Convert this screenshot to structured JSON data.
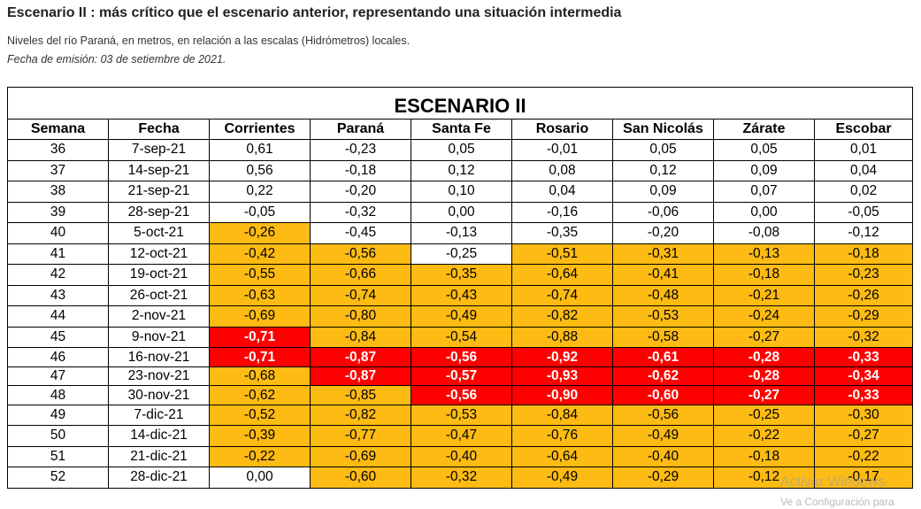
{
  "page": {
    "title": "Escenario II : más crítico que el escenario anterior, representando una situación intermedia",
    "subtitle": "Niveles del río Paraná, en metros, en relación a las escalas (Hidrómetros) locales.",
    "date": "Fecha de emisión: 03 de setiembre de 2021."
  },
  "table": {
    "heading": "ESCENARIO II",
    "columns": [
      "Semana",
      "Fecha",
      "Corrientes",
      "Paraná",
      "Santa Fe",
      "Rosario",
      "San Nicolás",
      "Zárate",
      "Escobar"
    ],
    "colors": {
      "white": "#ffffff",
      "yellow": "#fdbb13",
      "red": "#fe0000"
    },
    "rows": [
      {
        "semana": "36",
        "fecha": "7-sep-21",
        "values": [
          "0,61",
          "-0,23",
          "0,05",
          "-0,01",
          "0,05",
          "0,05",
          "0,01"
        ],
        "levels": [
          "w",
          "w",
          "w",
          "w",
          "w",
          "w",
          "w"
        ]
      },
      {
        "semana": "37",
        "fecha": "14-sep-21",
        "values": [
          "0,56",
          "-0,18",
          "0,12",
          "0,08",
          "0,12",
          "0,09",
          "0,04"
        ],
        "levels": [
          "w",
          "w",
          "w",
          "w",
          "w",
          "w",
          "w"
        ]
      },
      {
        "semana": "38",
        "fecha": "21-sep-21",
        "values": [
          "0,22",
          "-0,20",
          "0,10",
          "0,04",
          "0,09",
          "0,07",
          "0,02"
        ],
        "levels": [
          "w",
          "w",
          "w",
          "w",
          "w",
          "w",
          "w"
        ]
      },
      {
        "semana": "39",
        "fecha": "28-sep-21",
        "values": [
          "-0,05",
          "-0,32",
          "0,00",
          "-0,16",
          "-0,06",
          "0,00",
          "-0,05"
        ],
        "levels": [
          "w",
          "w",
          "w",
          "w",
          "w",
          "w",
          "w"
        ]
      },
      {
        "semana": "40",
        "fecha": "5-oct-21",
        "values": [
          "-0,26",
          "-0,45",
          "-0,13",
          "-0,35",
          "-0,20",
          "-0,08",
          "-0,12"
        ],
        "levels": [
          "y",
          "w",
          "w",
          "w",
          "w",
          "w",
          "w"
        ]
      },
      {
        "semana": "41",
        "fecha": "12-oct-21",
        "values": [
          "-0,42",
          "-0,56",
          "-0,25",
          "-0,51",
          "-0,31",
          "-0,13",
          "-0,18"
        ],
        "levels": [
          "y",
          "y",
          "w",
          "y",
          "y",
          "y",
          "y"
        ]
      },
      {
        "semana": "42",
        "fecha": "19-oct-21",
        "values": [
          "-0,55",
          "-0,66",
          "-0,35",
          "-0,64",
          "-0,41",
          "-0,18",
          "-0,23"
        ],
        "levels": [
          "y",
          "y",
          "y",
          "y",
          "y",
          "y",
          "y"
        ]
      },
      {
        "semana": "43",
        "fecha": "26-oct-21",
        "values": [
          "-0,63",
          "-0,74",
          "-0,43",
          "-0,74",
          "-0,48",
          "-0,21",
          "-0,26"
        ],
        "levels": [
          "y",
          "y",
          "y",
          "y",
          "y",
          "y",
          "y"
        ]
      },
      {
        "semana": "44",
        "fecha": "2-nov-21",
        "values": [
          "-0,69",
          "-0,80",
          "-0,49",
          "-0,82",
          "-0,53",
          "-0,24",
          "-0,29"
        ],
        "levels": [
          "y",
          "y",
          "y",
          "y",
          "y",
          "y",
          "y"
        ]
      },
      {
        "semana": "45",
        "fecha": "9-nov-21",
        "values": [
          "-0,71",
          "-0,84",
          "-0,54",
          "-0,88",
          "-0,58",
          "-0,27",
          "-0,32"
        ],
        "levels": [
          "r",
          "y",
          "y",
          "y",
          "y",
          "y",
          "y"
        ]
      },
      {
        "semana": "46",
        "fecha": "16-nov-21",
        "values": [
          "-0,71",
          "-0,87",
          "-0,56",
          "-0,92",
          "-0,61",
          "-0,28",
          "-0,33"
        ],
        "levels": [
          "r",
          "r",
          "r",
          "r",
          "r",
          "r",
          "r"
        ]
      },
      {
        "semana": "47",
        "fecha": "23-nov-21",
        "values": [
          "-0,68",
          "-0,87",
          "-0,57",
          "-0,93",
          "-0,62",
          "-0,28",
          "-0,34"
        ],
        "levels": [
          "y",
          "r",
          "r",
          "r",
          "r",
          "r",
          "r"
        ]
      },
      {
        "semana": "48",
        "fecha": "30-nov-21",
        "values": [
          "-0,62",
          "-0,85",
          "-0,56",
          "-0,90",
          "-0,60",
          "-0,27",
          "-0,33"
        ],
        "levels": [
          "y",
          "y",
          "r",
          "r",
          "r",
          "r",
          "r"
        ]
      },
      {
        "semana": "49",
        "fecha": "7-dic-21",
        "values": [
          "-0,52",
          "-0,82",
          "-0,53",
          "-0,84",
          "-0,56",
          "-0,25",
          "-0,30"
        ],
        "levels": [
          "y",
          "y",
          "y",
          "y",
          "y",
          "y",
          "y"
        ]
      },
      {
        "semana": "50",
        "fecha": "14-dic-21",
        "values": [
          "-0,39",
          "-0,77",
          "-0,47",
          "-0,76",
          "-0,49",
          "-0,22",
          "-0,27"
        ],
        "levels": [
          "y",
          "y",
          "y",
          "y",
          "y",
          "y",
          "y"
        ]
      },
      {
        "semana": "51",
        "fecha": "21-dic-21",
        "values": [
          "-0,22",
          "-0,69",
          "-0,40",
          "-0,64",
          "-0,40",
          "-0,18",
          "-0,22"
        ],
        "levels": [
          "y",
          "y",
          "y",
          "y",
          "y",
          "y",
          "y"
        ]
      },
      {
        "semana": "52",
        "fecha": "28-dic-21",
        "values": [
          "0,00",
          "-0,60",
          "-0,32",
          "-0,49",
          "-0,29",
          "-0,12",
          "-0,17"
        ],
        "levels": [
          "w",
          "y",
          "y",
          "y",
          "y",
          "y",
          "y"
        ]
      }
    ]
  },
  "watermark": {
    "line1": "Activar Windows",
    "line2": "Ve a Configuración para"
  }
}
